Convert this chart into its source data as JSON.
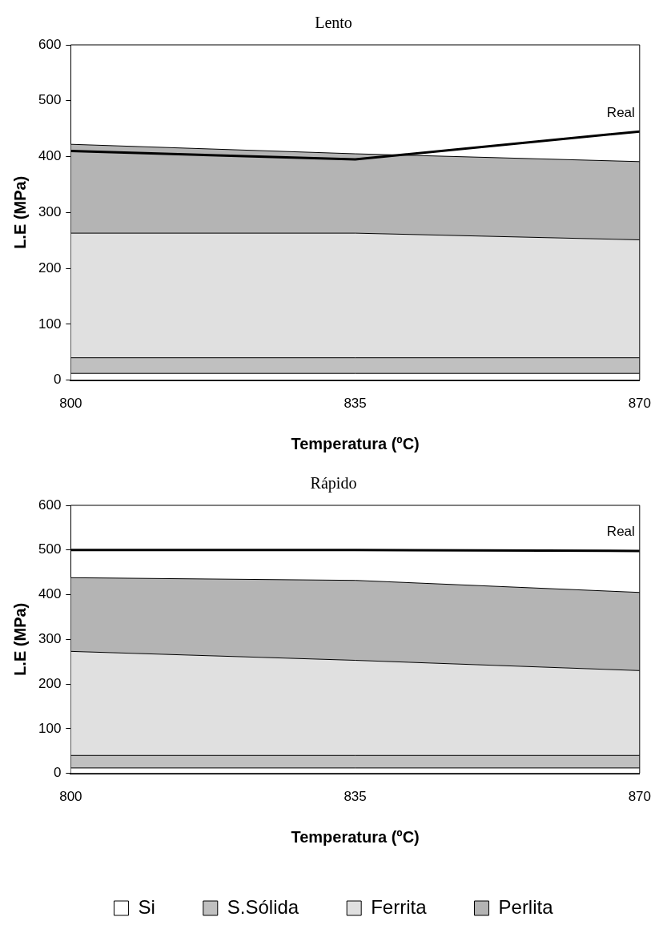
{
  "chart_data": [
    {
      "type": "area",
      "title": "Lento",
      "xlabel": "Temperatura (ºC)",
      "ylabel": "L.E (MPa)",
      "x": [
        800,
        835,
        870
      ],
      "stacked": true,
      "xlim": [
        800,
        870
      ],
      "xticks": [
        800,
        835,
        870
      ],
      "ylim": [
        0,
        600
      ],
      "yticks": [
        0,
        100,
        200,
        300,
        400,
        500,
        600
      ],
      "grid": false,
      "legend": false,
      "series": [
        {
          "color": "#ffffff",
          "values": [
            12,
            12,
            12
          ]
        },
        {
          "color": "#c0c0c0",
          "values": [
            28,
            28,
            28
          ]
        },
        {
          "color": "#e0e0e0",
          "values": [
            223,
            223,
            211
          ]
        },
        {
          "color": "#b4b4b4",
          "values": [
            159,
            142,
            140
          ]
        },
        {
          "name": "Real",
          "type": "line",
          "color": "#000000",
          "values": [
            410,
            395,
            445
          ]
        }
      ]
    },
    {
      "type": "area",
      "title": "Rápido",
      "xlabel": "Temperatura (ºC)",
      "ylabel": "L.E (MPa)",
      "x": [
        800,
        835,
        870
      ],
      "stacked": true,
      "xlim": [
        800,
        870
      ],
      "xticks": [
        800,
        835,
        870
      ],
      "ylim": [
        0,
        600
      ],
      "yticks": [
        0,
        100,
        200,
        300,
        400,
        500,
        600
      ],
      "grid": false,
      "legend": "bottom",
      "series": [
        {
          "name": "Si",
          "color": "#ffffff",
          "values": [
            12,
            12,
            12
          ]
        },
        {
          "name": "S.Sólida",
          "color": "#c0c0c0",
          "values": [
            28,
            28,
            28
          ]
        },
        {
          "name": "Ferrita",
          "color": "#e0e0e0",
          "values": [
            233,
            213,
            190
          ]
        },
        {
          "name": "Perlita",
          "color": "#b4b4b4",
          "values": [
            165,
            179,
            175
          ]
        },
        {
          "name": "Real",
          "type": "line",
          "color": "#000000",
          "values": [
            500,
            500,
            498
          ]
        }
      ]
    }
  ]
}
